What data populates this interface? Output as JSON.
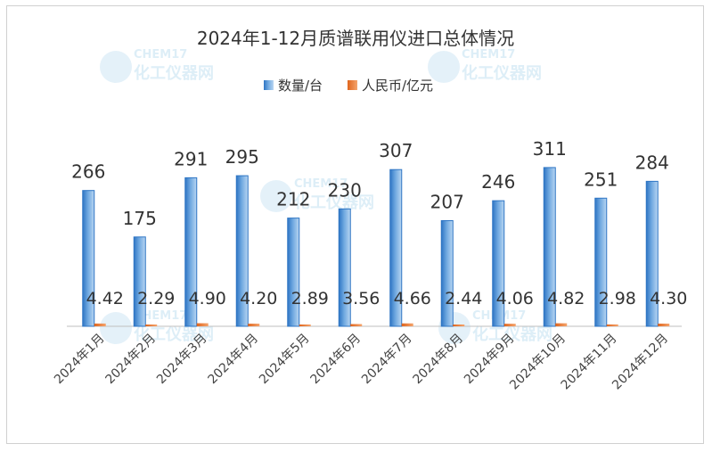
{
  "chart_data": {
    "type": "bar",
    "title": "2024年1-12月质谱联用仪进口总体情况",
    "categories": [
      "2024年1月",
      "2024年2月",
      "2024年3月",
      "2024年4月",
      "2024年5月",
      "2024年6月",
      "2024年7月",
      "2024年8月",
      "2024年9月",
      "2024年10月",
      "2024年11月",
      "2024年12月"
    ],
    "series": [
      {
        "name": "数量/台",
        "color": "#5b9bd5",
        "values": [
          266,
          175,
          291,
          295,
          212,
          230,
          307,
          207,
          246,
          311,
          251,
          284
        ]
      },
      {
        "name": "人民币/亿元",
        "color": "#ed7d31",
        "values": [
          4.42,
          2.29,
          4.9,
          4.2,
          2.89,
          3.56,
          4.66,
          2.44,
          4.06,
          4.82,
          2.98,
          4.3
        ],
        "labels": [
          "4.42",
          "2.29",
          "4.90",
          "4.20",
          "2.89",
          "3.56",
          "4.66",
          "2.44",
          "4.06",
          "4.82",
          "2.98",
          "4.30"
        ]
      }
    ],
    "ylim": [
      0,
      340
    ],
    "legend_position": "top-center",
    "grid": false,
    "xlabel": "",
    "ylabel": ""
  },
  "watermark": {
    "brand": "CHEM17",
    "tagline": "化工仪器网"
  }
}
